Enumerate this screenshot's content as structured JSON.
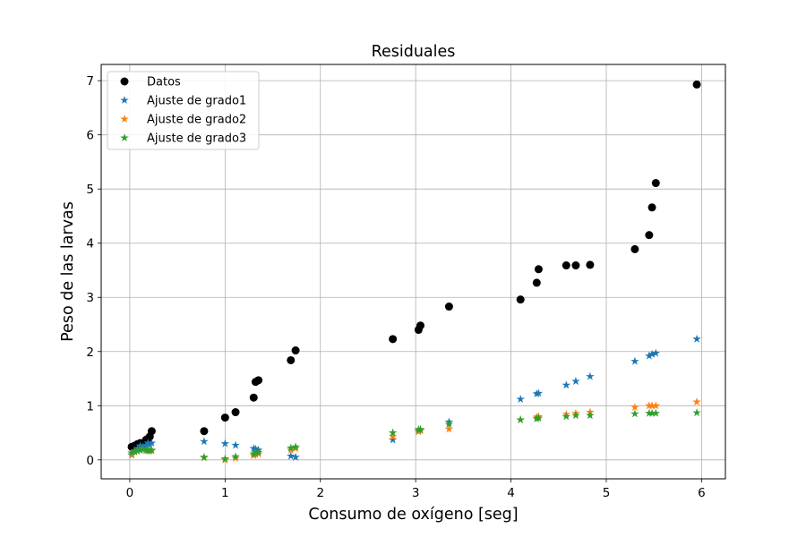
{
  "chart_data": {
    "type": "scatter",
    "title": "Residuales",
    "xlabel": "Consumo de oxígeno [seg]",
    "ylabel": "Peso de las larvas",
    "xlim": [
      -0.3,
      6.25
    ],
    "ylim": [
      -0.35,
      7.3
    ],
    "xticks": [
      0,
      1,
      2,
      3,
      4,
      5,
      6
    ],
    "yticks": [
      0,
      1,
      2,
      3,
      4,
      5,
      6,
      7
    ],
    "grid": true,
    "legend_position": "upper-left",
    "x": [
      0.02,
      0.05,
      0.08,
      0.11,
      0.14,
      0.17,
      0.19,
      0.21,
      0.23,
      0.78,
      1.0,
      1.11,
      1.3,
      1.32,
      1.35,
      1.69,
      1.74,
      2.76,
      3.03,
      3.05,
      3.35,
      4.1,
      4.27,
      4.29,
      4.58,
      4.68,
      4.83,
      5.3,
      5.45,
      5.48,
      5.52,
      5.95
    ],
    "series": [
      {
        "name": "Datos",
        "marker": "circle",
        "color": "#000000",
        "values": [
          0.24,
          0.26,
          0.29,
          0.31,
          0.3,
          0.37,
          0.39,
          0.43,
          0.53,
          0.53,
          0.78,
          0.88,
          1.15,
          1.44,
          1.47,
          1.84,
          2.02,
          2.23,
          2.4,
          2.48,
          2.83,
          2.96,
          3.27,
          3.52,
          3.59,
          3.59,
          3.6,
          3.89,
          4.15,
          4.66,
          5.11,
          6.93
        ]
      },
      {
        "name": "Ajuste de grado1",
        "marker": "star",
        "color": "#1f77b4",
        "values": [
          0.09,
          0.17,
          0.21,
          0.26,
          0.24,
          0.27,
          0.31,
          0.28,
          0.31,
          0.34,
          0.3,
          0.27,
          0.21,
          0.2,
          0.18,
          0.07,
          0.05,
          0.37,
          0.53,
          0.55,
          0.7,
          1.12,
          1.22,
          1.23,
          1.38,
          1.45,
          1.54,
          1.82,
          1.92,
          1.95,
          1.97,
          2.23
        ]
      },
      {
        "name": "Ajuste de grado2",
        "marker": "star",
        "color": "#ff7f0e",
        "values": [
          0.1,
          0.15,
          0.16,
          0.18,
          0.19,
          0.17,
          0.17,
          0.16,
          0.17,
          0.04,
          0.0,
          0.03,
          0.08,
          0.1,
          0.11,
          0.18,
          0.21,
          0.43,
          0.52,
          0.54,
          0.57,
          0.74,
          0.79,
          0.8,
          0.84,
          0.86,
          0.88,
          0.97,
          1.0,
          1.0,
          1.0,
          1.07
        ]
      },
      {
        "name": "Ajuste de grado3",
        "marker": "star",
        "color": "#2ca02c",
        "values": [
          0.13,
          0.15,
          0.17,
          0.18,
          0.19,
          0.19,
          0.17,
          0.18,
          0.18,
          0.05,
          0.02,
          0.06,
          0.11,
          0.13,
          0.14,
          0.22,
          0.24,
          0.5,
          0.56,
          0.56,
          0.66,
          0.74,
          0.76,
          0.77,
          0.8,
          0.82,
          0.82,
          0.85,
          0.86,
          0.86,
          0.86,
          0.87
        ]
      }
    ]
  }
}
